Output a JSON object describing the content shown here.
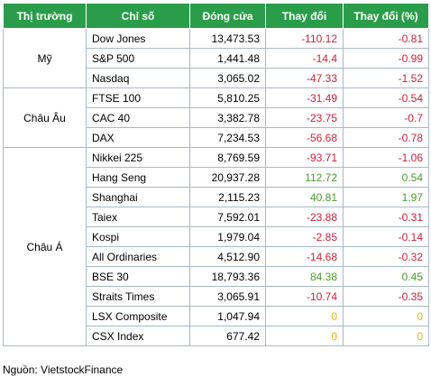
{
  "headers": [
    "Thị trường",
    "Chỉ số",
    "Đóng cửa",
    "Thay đổi",
    "Thay đổi (%)"
  ],
  "groups": [
    {
      "market": "Mỹ",
      "rows": [
        {
          "index": "Dow Jones",
          "close": "13,473.53",
          "change": "-110.12",
          "pct": "-0.81",
          "trend": "neg"
        },
        {
          "index": "S&P 500",
          "close": "1,441.48",
          "change": "-14.4",
          "pct": "-0.99",
          "trend": "neg"
        },
        {
          "index": "Nasdaq",
          "close": "3,065.02",
          "change": "-47.33",
          "pct": "-1.52",
          "trend": "neg"
        }
      ]
    },
    {
      "market": "Châu Âu",
      "rows": [
        {
          "index": "FTSE 100",
          "close": "5,810.25",
          "change": "-31.49",
          "pct": "-0.54",
          "trend": "neg"
        },
        {
          "index": "CAC 40",
          "close": "3,382.78",
          "change": "-23.75",
          "pct": "-0.7",
          "trend": "neg"
        },
        {
          "index": "DAX",
          "close": "7,234.53",
          "change": "-56.68",
          "pct": "-0.78",
          "trend": "neg"
        }
      ]
    },
    {
      "market": "Châu Á",
      "rows": [
        {
          "index": "Nikkei 225",
          "close": "8,769.59",
          "change": "-93.71",
          "pct": "-1.06",
          "trend": "neg"
        },
        {
          "index": "Hang Seng",
          "close": "20,937.28",
          "change": "112.72",
          "pct": "0.54",
          "trend": "pos"
        },
        {
          "index": "Shanghai",
          "close": "2,115.23",
          "change": "40.81",
          "pct": "1.97",
          "trend": "pos"
        },
        {
          "index": "Taiex",
          "close": "7,592.01",
          "change": "-23.88",
          "pct": "-0.31",
          "trend": "neg"
        },
        {
          "index": "Kospi",
          "close": "1,979.04",
          "change": "-2.85",
          "pct": "-0.14",
          "trend": "neg"
        },
        {
          "index": "All Ordinaries",
          "close": "4,512.90",
          "change": "-14.68",
          "pct": "-0.32",
          "trend": "neg"
        },
        {
          "index": "BSE 30",
          "close": "18,793.36",
          "change": "84.38",
          "pct": "0.45",
          "trend": "pos"
        },
        {
          "index": "Straits Times",
          "close": "3,065.91",
          "change": "-10.74",
          "pct": "-0.35",
          "trend": "neg"
        },
        {
          "index": "LSX Composite",
          "close": "1,047.94",
          "change": "0",
          "pct": "0",
          "trend": "zero"
        },
        {
          "index": "CSX Index",
          "close": "677.42",
          "change": "0",
          "pct": "0",
          "trend": "zero"
        }
      ]
    }
  ],
  "source": "Nguồn: VietstockFinance",
  "colors": {
    "header_bg": "#2a9d4a",
    "header_text": "#ffffff",
    "negative": "#d0203a",
    "positive": "#4a9a2e",
    "unchanged": "#e8b400",
    "border": "#a9b8c6"
  }
}
